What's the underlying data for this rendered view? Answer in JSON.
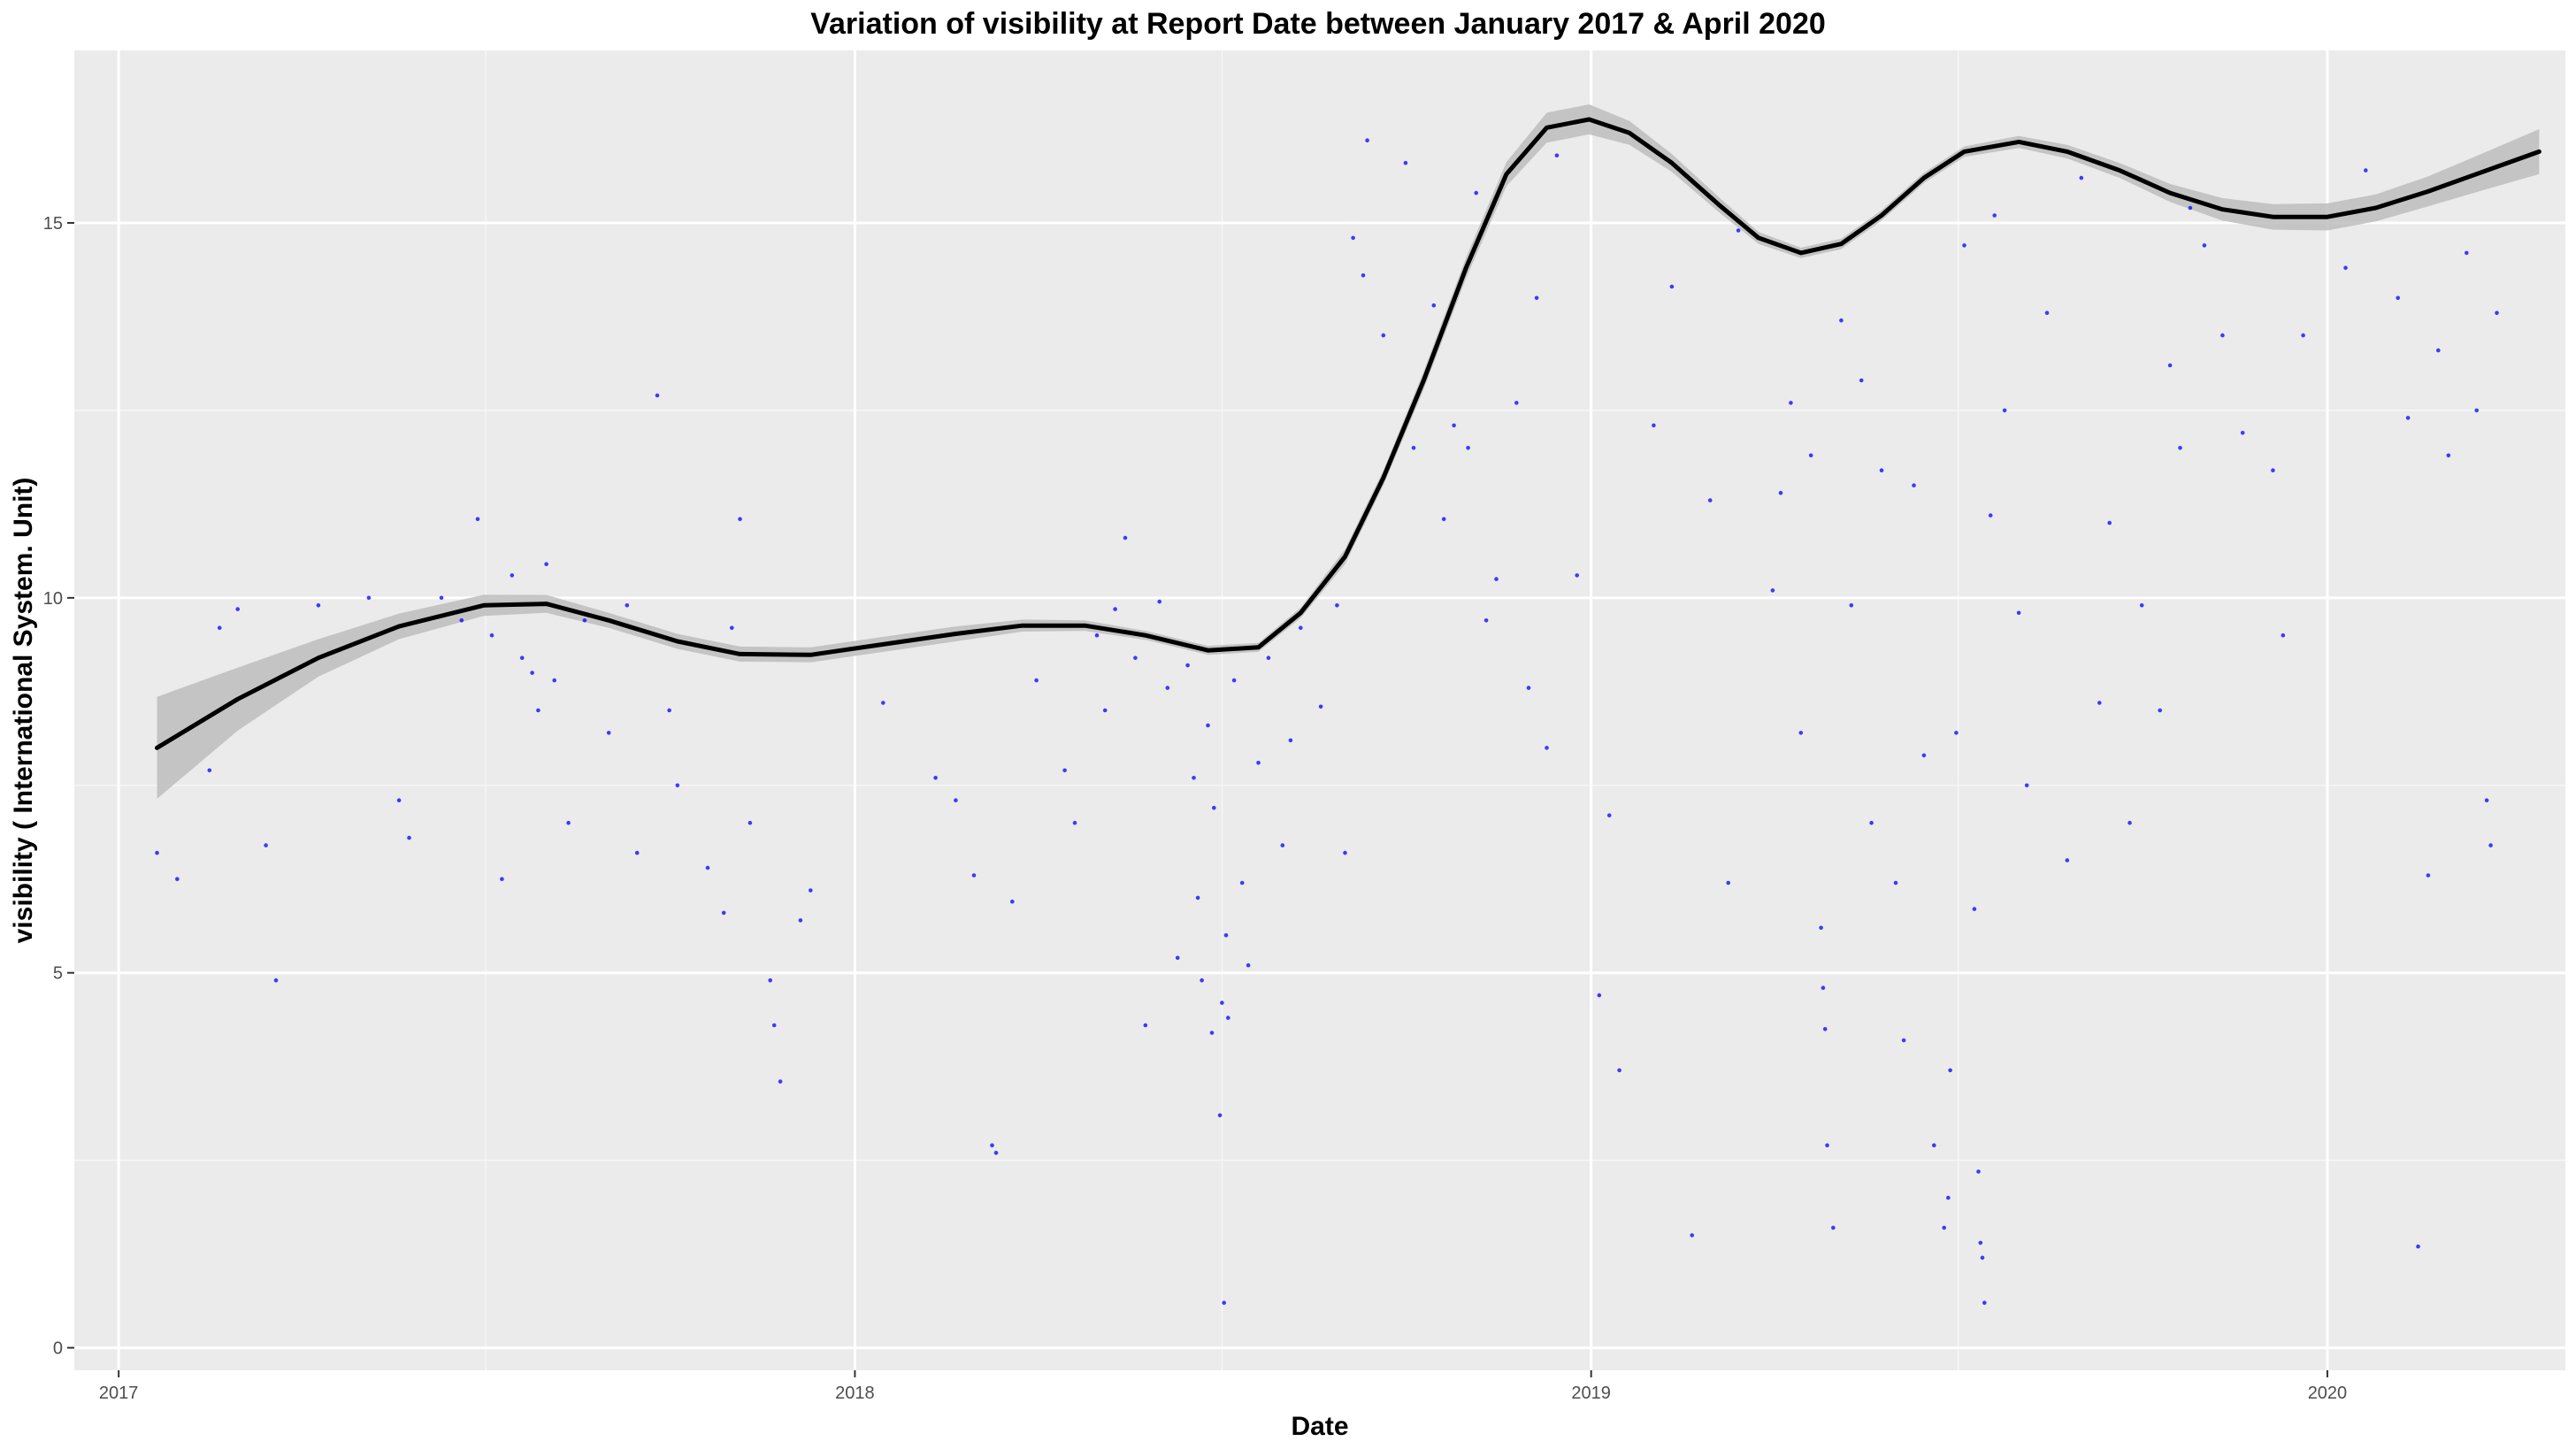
{
  "chart_data": {
    "type": "scatter",
    "title": "Variation of  visibility  at Report Date between January 2017 & April 2020",
    "xlabel": "Date",
    "ylabel": "visibility ( International System. Unit)",
    "xlim": [
      "2016-12-10",
      "2020-04-28"
    ],
    "ylim": [
      -0.3,
      17.3
    ],
    "x_ticks": [
      {
        "label": "2017",
        "value": "2017-01-01"
      },
      {
        "label": "2018",
        "value": "2018-01-01"
      },
      {
        "label": "2019",
        "value": "2019-01-01"
      },
      {
        "label": "2020",
        "value": "2020-01-01"
      }
    ],
    "y_ticks": [
      {
        "label": "0",
        "value": 0
      },
      {
        "label": "5",
        "value": 5
      },
      {
        "label": "10",
        "value": 10
      },
      {
        "label": "15",
        "value": 15
      }
    ],
    "grid": true,
    "legend": "none",
    "series": [
      {
        "kind": "points",
        "color": "#0000ff",
        "points": [
          [
            "2017-01-20",
            6.6
          ],
          [
            "2017-01-30",
            6.25
          ],
          [
            "2017-02-15",
            7.7
          ],
          [
            "2017-02-20",
            9.6
          ],
          [
            "2017-03-01",
            9.85
          ],
          [
            "2017-03-15",
            6.7
          ],
          [
            "2017-03-20",
            4.9
          ],
          [
            "2017-04-10",
            9.9
          ],
          [
            "2017-05-05",
            10.0
          ],
          [
            "2017-05-20",
            7.3
          ],
          [
            "2017-05-25",
            6.8
          ],
          [
            "2017-06-10",
            10.0
          ],
          [
            "2017-06-20",
            9.7
          ],
          [
            "2017-06-28",
            11.05
          ],
          [
            "2017-07-05",
            9.5
          ],
          [
            "2017-07-10",
            6.25
          ],
          [
            "2017-07-15",
            10.3
          ],
          [
            "2017-07-20",
            9.2
          ],
          [
            "2017-07-25",
            9.0
          ],
          [
            "2017-07-28",
            8.5
          ],
          [
            "2017-08-01",
            10.45
          ],
          [
            "2017-08-05",
            8.9
          ],
          [
            "2017-08-12",
            7.0
          ],
          [
            "2017-08-20",
            9.7
          ],
          [
            "2017-09-01",
            8.2
          ],
          [
            "2017-09-10",
            9.9
          ],
          [
            "2017-09-15",
            6.6
          ],
          [
            "2017-09-25",
            12.7
          ],
          [
            "2017-10-01",
            8.5
          ],
          [
            "2017-10-05",
            7.5
          ],
          [
            "2017-10-20",
            6.4
          ],
          [
            "2017-10-28",
            5.8
          ],
          [
            "2017-11-01",
            9.6
          ],
          [
            "2017-11-05",
            11.05
          ],
          [
            "2017-11-10",
            7.0
          ],
          [
            "2017-11-20",
            4.9
          ],
          [
            "2017-11-22",
            4.3
          ],
          [
            "2017-11-25",
            3.55
          ],
          [
            "2017-12-05",
            5.7
          ],
          [
            "2017-12-10",
            6.1
          ],
          [
            "2018-01-15",
            8.6
          ],
          [
            "2018-02-10",
            7.6
          ],
          [
            "2018-02-20",
            7.3
          ],
          [
            "2018-03-01",
            6.3
          ],
          [
            "2018-03-10",
            2.7
          ],
          [
            "2018-03-12",
            2.6
          ],
          [
            "2018-03-20",
            5.95
          ],
          [
            "2018-04-01",
            8.9
          ],
          [
            "2018-04-15",
            7.7
          ],
          [
            "2018-04-20",
            7.0
          ],
          [
            "2018-05-01",
            9.5
          ],
          [
            "2018-05-05",
            8.5
          ],
          [
            "2018-05-10",
            9.85
          ],
          [
            "2018-05-15",
            10.8
          ],
          [
            "2018-05-20",
            9.2
          ],
          [
            "2018-05-25",
            4.3
          ],
          [
            "2018-06-01",
            9.95
          ],
          [
            "2018-06-05",
            8.8
          ],
          [
            "2018-06-10",
            5.2
          ],
          [
            "2018-06-15",
            9.1
          ],
          [
            "2018-06-18",
            7.6
          ],
          [
            "2018-06-20",
            6.0
          ],
          [
            "2018-06-22",
            4.9
          ],
          [
            "2018-06-25",
            8.3
          ],
          [
            "2018-06-27",
            4.2
          ],
          [
            "2018-06-28",
            7.2
          ],
          [
            "2018-07-01",
            3.1
          ],
          [
            "2018-07-02",
            4.6
          ],
          [
            "2018-07-03",
            0.6
          ],
          [
            "2018-07-04",
            5.5
          ],
          [
            "2018-07-05",
            4.4
          ],
          [
            "2018-07-08",
            8.9
          ],
          [
            "2018-07-12",
            6.2
          ],
          [
            "2018-07-15",
            5.1
          ],
          [
            "2018-07-20",
            7.8
          ],
          [
            "2018-07-25",
            9.2
          ],
          [
            "2018-08-01",
            6.7
          ],
          [
            "2018-08-05",
            8.1
          ],
          [
            "2018-08-10",
            9.6
          ],
          [
            "2018-08-20",
            8.55
          ],
          [
            "2018-08-28",
            9.9
          ],
          [
            "2018-09-01",
            6.6
          ],
          [
            "2018-09-05",
            14.8
          ],
          [
            "2018-09-10",
            14.3
          ],
          [
            "2018-09-12",
            16.1
          ],
          [
            "2018-09-20",
            13.5
          ],
          [
            "2018-10-01",
            15.8
          ],
          [
            "2018-10-05",
            12.0
          ],
          [
            "2018-10-15",
            13.9
          ],
          [
            "2018-10-20",
            11.05
          ],
          [
            "2018-10-25",
            12.3
          ],
          [
            "2018-11-01",
            12.0
          ],
          [
            "2018-11-05",
            15.4
          ],
          [
            "2018-11-10",
            9.7
          ],
          [
            "2018-11-15",
            10.25
          ],
          [
            "2018-11-25",
            12.6
          ],
          [
            "2018-12-01",
            8.8
          ],
          [
            "2018-12-05",
            14.0
          ],
          [
            "2018-12-10",
            8.0
          ],
          [
            "2018-12-15",
            15.9
          ],
          [
            "2018-12-25",
            10.3
          ],
          [
            "2019-01-05",
            4.7
          ],
          [
            "2019-01-10",
            7.1
          ],
          [
            "2019-01-15",
            3.7
          ],
          [
            "2019-02-01",
            12.3
          ],
          [
            "2019-02-10",
            14.15
          ],
          [
            "2019-02-20",
            1.5
          ],
          [
            "2019-03-01",
            11.3
          ],
          [
            "2019-03-10",
            6.2
          ],
          [
            "2019-03-15",
            14.9
          ],
          [
            "2019-04-01",
            10.1
          ],
          [
            "2019-04-05",
            11.4
          ],
          [
            "2019-04-10",
            12.6
          ],
          [
            "2019-04-15",
            8.2
          ],
          [
            "2019-04-20",
            11.9
          ],
          [
            "2019-04-25",
            5.6
          ],
          [
            "2019-04-26",
            4.8
          ],
          [
            "2019-04-27",
            4.25
          ],
          [
            "2019-04-28",
            2.7
          ],
          [
            "2019-05-01",
            1.6
          ],
          [
            "2019-05-05",
            13.7
          ],
          [
            "2019-05-10",
            9.9
          ],
          [
            "2019-05-15",
            12.9
          ],
          [
            "2019-05-20",
            7.0
          ],
          [
            "2019-05-25",
            11.7
          ],
          [
            "2019-06-01",
            6.2
          ],
          [
            "2019-06-05",
            4.1
          ],
          [
            "2019-06-10",
            11.5
          ],
          [
            "2019-06-15",
            7.9
          ],
          [
            "2019-06-20",
            2.7
          ],
          [
            "2019-06-25",
            1.6
          ],
          [
            "2019-06-27",
            2.0
          ],
          [
            "2019-06-28",
            3.7
          ],
          [
            "2019-07-01",
            8.2
          ],
          [
            "2019-07-05",
            14.7
          ],
          [
            "2019-07-10",
            5.85
          ],
          [
            "2019-07-12",
            2.35
          ],
          [
            "2019-07-13",
            1.4
          ],
          [
            "2019-07-14",
            1.2
          ],
          [
            "2019-07-15",
            0.6
          ],
          [
            "2019-07-18",
            11.1
          ],
          [
            "2019-07-20",
            15.1
          ],
          [
            "2019-07-25",
            12.5
          ],
          [
            "2019-08-01",
            9.8
          ],
          [
            "2019-08-05",
            7.5
          ],
          [
            "2019-08-15",
            13.8
          ],
          [
            "2019-08-25",
            6.5
          ],
          [
            "2019-09-01",
            15.6
          ],
          [
            "2019-09-10",
            8.6
          ],
          [
            "2019-09-15",
            11.0
          ],
          [
            "2019-09-25",
            7.0
          ],
          [
            "2019-10-01",
            9.9
          ],
          [
            "2019-10-10",
            8.5
          ],
          [
            "2019-10-15",
            13.1
          ],
          [
            "2019-10-20",
            12.0
          ],
          [
            "2019-10-25",
            15.2
          ],
          [
            "2019-11-01",
            14.7
          ],
          [
            "2019-11-10",
            13.5
          ],
          [
            "2019-11-20",
            12.2
          ],
          [
            "2019-12-05",
            11.7
          ],
          [
            "2019-12-10",
            9.5
          ],
          [
            "2019-12-20",
            13.5
          ],
          [
            "2020-01-10",
            14.4
          ],
          [
            "2020-01-20",
            15.7
          ],
          [
            "2020-02-05",
            14.0
          ],
          [
            "2020-02-10",
            12.4
          ],
          [
            "2020-02-15",
            1.35
          ],
          [
            "2020-02-20",
            6.3
          ],
          [
            "2020-02-25",
            13.3
          ],
          [
            "2020-03-01",
            11.9
          ],
          [
            "2020-03-10",
            14.6
          ],
          [
            "2020-03-15",
            12.5
          ],
          [
            "2020-03-20",
            7.3
          ],
          [
            "2020-03-22",
            6.7
          ],
          [
            "2020-03-25",
            13.8
          ]
        ]
      },
      {
        "kind": "smooth",
        "color": "#000000",
        "ribbon_color": "#bdbdbd",
        "points": [
          [
            "2017-01-20",
            8.0,
            0.68
          ],
          [
            "2017-03-01",
            8.65,
            0.42
          ],
          [
            "2017-04-10",
            9.2,
            0.25
          ],
          [
            "2017-05-20",
            9.62,
            0.17
          ],
          [
            "2017-07-01",
            9.9,
            0.14
          ],
          [
            "2017-08-01",
            9.92,
            0.12
          ],
          [
            "2017-09-01",
            9.7,
            0.1
          ],
          [
            "2017-10-05",
            9.42,
            0.1
          ],
          [
            "2017-11-05",
            9.25,
            0.1
          ],
          [
            "2017-12-10",
            9.24,
            0.1
          ],
          [
            "2018-01-15",
            9.38,
            0.1
          ],
          [
            "2018-02-20",
            9.52,
            0.1
          ],
          [
            "2018-03-25",
            9.63,
            0.08
          ],
          [
            "2018-04-25",
            9.63,
            0.07
          ],
          [
            "2018-05-25",
            9.5,
            0.06
          ],
          [
            "2018-06-25",
            9.3,
            0.06
          ],
          [
            "2018-07-20",
            9.34,
            0.06
          ],
          [
            "2018-08-10",
            9.8,
            0.07
          ],
          [
            "2018-09-01",
            10.55,
            0.1
          ],
          [
            "2018-09-20",
            11.6,
            0.1
          ],
          [
            "2018-10-10",
            12.9,
            0.12
          ],
          [
            "2018-10-31",
            14.4,
            0.14
          ],
          [
            "2018-11-20",
            15.65,
            0.16
          ],
          [
            "2018-12-10",
            16.27,
            0.2
          ],
          [
            "2018-12-31",
            16.38,
            0.2
          ],
          [
            "2019-01-20",
            16.2,
            0.16
          ],
          [
            "2019-02-10",
            15.8,
            0.12
          ],
          [
            "2019-03-05",
            15.25,
            0.1
          ],
          [
            "2019-03-25",
            14.8,
            0.08
          ],
          [
            "2019-04-15",
            14.6,
            0.07
          ],
          [
            "2019-05-05",
            14.72,
            0.07
          ],
          [
            "2019-05-25",
            15.1,
            0.07
          ],
          [
            "2019-06-15",
            15.6,
            0.07
          ],
          [
            "2019-07-05",
            15.95,
            0.07
          ],
          [
            "2019-08-01",
            16.08,
            0.08
          ],
          [
            "2019-08-25",
            15.95,
            0.09
          ],
          [
            "2019-09-20",
            15.7,
            0.1
          ],
          [
            "2019-10-15",
            15.4,
            0.12
          ],
          [
            "2019-11-10",
            15.18,
            0.15
          ],
          [
            "2019-12-05",
            15.08,
            0.17
          ],
          [
            "2020-01-01",
            15.08,
            0.18
          ],
          [
            "2020-01-25",
            15.2,
            0.18
          ],
          [
            "2020-02-20",
            15.42,
            0.2
          ],
          [
            "2020-03-20",
            15.7,
            0.25
          ],
          [
            "2020-04-15",
            15.95,
            0.3
          ]
        ]
      }
    ]
  }
}
